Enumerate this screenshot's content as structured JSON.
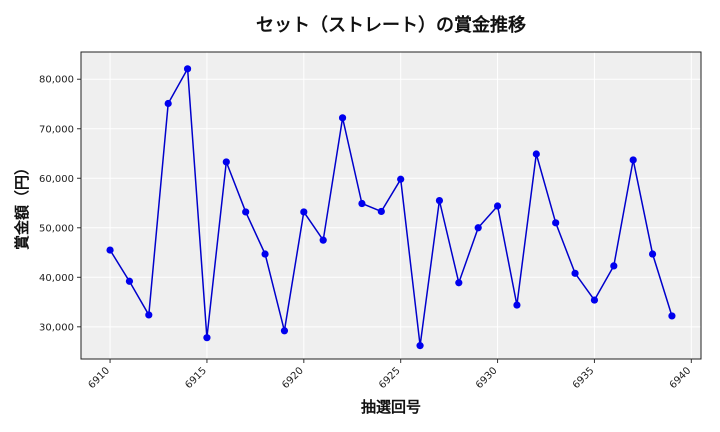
{
  "chart_data": {
    "type": "line",
    "title": "セット（ストレート）の賞金推移",
    "xlabel": "抽選回号",
    "ylabel": "賞金額（円）",
    "xlim": [
      6908.5,
      6940.5
    ],
    "ylim": [
      23500,
      85500
    ],
    "x_ticks": [
      6910,
      6915,
      6920,
      6925,
      6930,
      6935,
      6940
    ],
    "y_ticks": [
      30000,
      40000,
      50000,
      60000,
      70000,
      80000
    ],
    "y_tick_labels": [
      "30,000",
      "40,000",
      "50,000",
      "60,000",
      "70,000",
      "80,000"
    ],
    "grid": true,
    "colors": {
      "line": "#0000cc",
      "marker": "#0000ee",
      "plot_bg": "#efefef",
      "grid": "#ffffff"
    },
    "series": [
      {
        "x": [
          6910,
          6911,
          6912,
          6913,
          6914,
          6915,
          6916,
          6917,
          6918,
          6919,
          6920,
          6921,
          6922,
          6923,
          6924,
          6925,
          6926,
          6927,
          6928,
          6929,
          6930,
          6931,
          6932,
          6933,
          6934,
          6935,
          6936,
          6937,
          6938,
          6939
        ],
        "values": [
          45500,
          39200,
          32400,
          75100,
          82100,
          27800,
          63300,
          53200,
          44700,
          29200,
          53200,
          47500,
          72200,
          54900,
          53300,
          59800,
          26200,
          55500,
          38900,
          50000,
          54400,
          34400,
          64900,
          51000,
          40800,
          35400,
          42300,
          63700,
          44700,
          32200
        ]
      }
    ]
  }
}
